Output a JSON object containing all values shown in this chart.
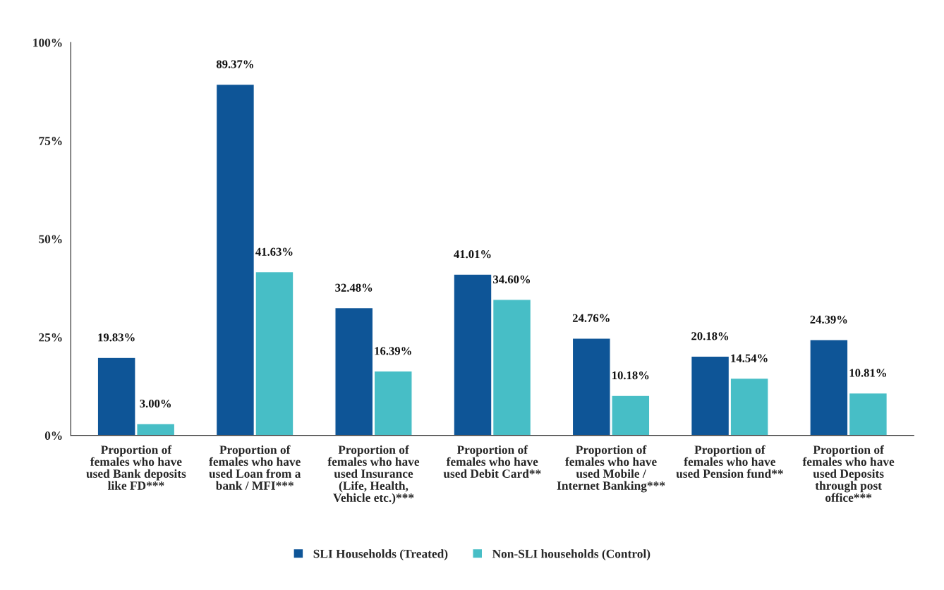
{
  "chart_data": {
    "type": "bar",
    "categories": [
      "Proportion of females who have used Bank deposits like FD***",
      "Proportion of females who have used Loan from a bank / MFI***",
      "Proportion of females who have used Insurance (Life, Health, Vehicle etc.)***",
      "Proportion of females who have used Debit Card**",
      "Proportion of females who have used Mobile / Internet Banking***",
      "Proportion of females who have used Pension fund**",
      "Proportion of females who have used Deposits through post office***"
    ],
    "series": [
      {
        "name": "SLI Households (Treated)",
        "color": "#0e5597",
        "values": [
          19.83,
          89.37,
          32.48,
          41.01,
          24.76,
          20.18,
          24.39
        ],
        "value_labels": [
          "19.83%",
          "89.37%",
          "32.48%",
          "41.01%",
          "24.76%",
          "20.18%",
          "24.39%"
        ]
      },
      {
        "name": "Non-SLI households (Control)",
        "color": "#47bec6",
        "values": [
          3.0,
          41.63,
          16.39,
          34.6,
          10.18,
          14.54,
          10.81
        ],
        "value_labels": [
          "3.00%",
          "41.63%",
          "16.39%",
          "34.60%",
          "10.18%",
          "14.54%",
          "10.81%"
        ]
      }
    ],
    "ylim": [
      0,
      100
    ],
    "yticks": [
      {
        "value": 0,
        "label": "0%"
      },
      {
        "value": 25,
        "label": "25%"
      },
      {
        "value": 50,
        "label": "50%"
      },
      {
        "value": 75,
        "label": "75%"
      },
      {
        "value": 100,
        "label": "100%"
      }
    ],
    "grid": false,
    "legend": "bottom"
  }
}
